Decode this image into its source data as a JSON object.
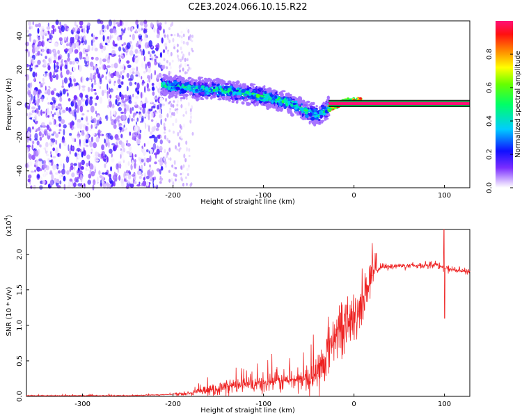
{
  "figure": {
    "title": "C2E3.2024.066.10.15.R22"
  },
  "chart_data": [
    {
      "type": "heatmap",
      "name": "spectrogram",
      "xlabel": "Height of straight line (km)",
      "ylabel": "Frequency (Hz)",
      "xlim": [
        -362,
        128
      ],
      "ylim": [
        -50,
        49
      ],
      "xticks": [
        -300,
        -200,
        -100,
        0,
        100
      ],
      "yticks": [
        -40,
        -20,
        0,
        20,
        40
      ],
      "colorbar": {
        "label": "Normalized spectral amplitude",
        "range": [
          0,
          1
        ],
        "ticks": [
          0.0,
          0.2,
          0.4,
          0.6,
          0.8
        ],
        "tick_labels": [
          "0.0",
          "0.2",
          "0.4",
          "0.6",
          "0.8"
        ]
      },
      "features": {
        "noise_region_km": [
          -362,
          -210
        ],
        "sparse_noise_km": [
          -210,
          -178
        ],
        "drifting_band_km": [
          -212,
          -28
        ],
        "band_center_hz": [
          [
            -212,
            11
          ],
          [
            -180,
            9
          ],
          [
            -150,
            8
          ],
          [
            -120,
            6
          ],
          [
            -90,
            3
          ],
          [
            -70,
            0
          ],
          [
            -55,
            -4
          ],
          [
            -40,
            -7
          ],
          [
            -28,
            -3
          ],
          [
            -10,
            1
          ],
          [
            5,
            2
          ]
        ],
        "carrier_line_start_km": -28,
        "carrier_hz": 0,
        "carrier_band_hz": [
          -1.5,
          1.5
        ]
      }
    },
    {
      "type": "line",
      "name": "snr",
      "xlabel": "Height of straight line (km)",
      "ylabel": "SNR (10 * v/v)",
      "y_multiplier_label": "(x10",
      "y_multiplier_exp": "4",
      "xlim": [
        -362,
        128
      ],
      "ylim": [
        0,
        2.35
      ],
      "xticks": [
        -300,
        -200,
        -100,
        0,
        100
      ],
      "yticks": [
        0.0,
        0.5,
        1.0,
        1.5,
        2.0
      ],
      "ytick_labels": [
        "0.0",
        "0.5",
        "1.0",
        "1.5",
        "2.0"
      ],
      "series": [
        {
          "name": "SNR",
          "color": "#ee2222",
          "x": [
            -362,
            -300,
            -250,
            -220,
            -200,
            -180,
            -160,
            -140,
            -120,
            -100,
            -80,
            -60,
            -45,
            -35,
            -28,
            -20,
            -12,
            -5,
            0,
            5,
            10,
            15,
            20,
            25,
            30,
            40,
            50,
            60,
            70,
            80,
            90,
            95,
            100,
            105,
            110,
            115,
            120,
            128
          ],
          "y": [
            0.01,
            0.01,
            0.01,
            0.02,
            0.03,
            0.05,
            0.08,
            0.14,
            0.16,
            0.18,
            0.22,
            0.24,
            0.26,
            0.4,
            0.7,
            0.9,
            1.0,
            1.05,
            1.1,
            1.2,
            1.4,
            1.55,
            1.7,
            1.78,
            1.82,
            1.83,
            1.84,
            1.84,
            1.84,
            1.85,
            1.86,
            1.83,
            1.8,
            1.79,
            1.78,
            1.77,
            1.76,
            1.76
          ]
        }
      ]
    }
  ]
}
